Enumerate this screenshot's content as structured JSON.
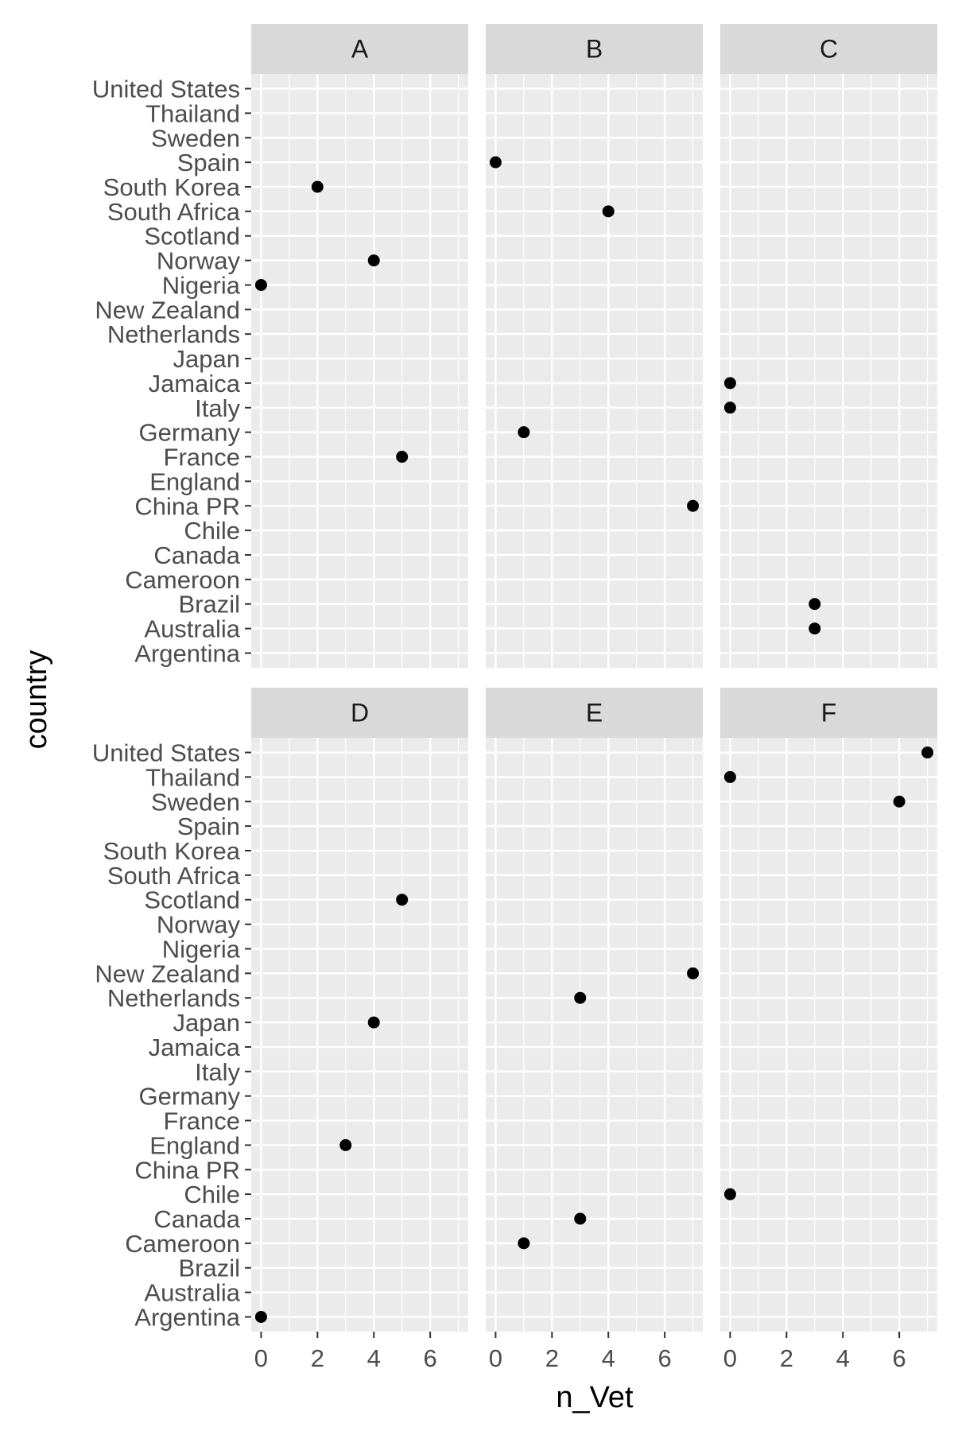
{
  "chart_data": {
    "type": "scatter",
    "xlabel": "n_Vet",
    "ylabel": "country",
    "xlim": [
      -0.35,
      7.35
    ],
    "x_ticks": [
      0,
      2,
      4,
      6
    ],
    "grid": true,
    "countries": [
      "Argentina",
      "Australia",
      "Brazil",
      "Cameroon",
      "Canada",
      "Chile",
      "China PR",
      "England",
      "France",
      "Germany",
      "Italy",
      "Jamaica",
      "Japan",
      "Netherlands",
      "New Zealand",
      "Nigeria",
      "Norway",
      "Scotland",
      "South Africa",
      "South Korea",
      "Spain",
      "Sweden",
      "Thailand",
      "United States"
    ],
    "panels": [
      {
        "name": "A",
        "points": [
          {
            "country": "South Korea",
            "x": 2
          },
          {
            "country": "Norway",
            "x": 4
          },
          {
            "country": "Nigeria",
            "x": 0
          },
          {
            "country": "France",
            "x": 5
          }
        ]
      },
      {
        "name": "B",
        "points": [
          {
            "country": "Spain",
            "x": 0
          },
          {
            "country": "South Africa",
            "x": 4
          },
          {
            "country": "Germany",
            "x": 1
          },
          {
            "country": "China PR",
            "x": 7
          }
        ]
      },
      {
        "name": "C",
        "points": [
          {
            "country": "Jamaica",
            "x": 0
          },
          {
            "country": "Italy",
            "x": 0
          },
          {
            "country": "Brazil",
            "x": 3
          },
          {
            "country": "Australia",
            "x": 3
          }
        ]
      },
      {
        "name": "D",
        "points": [
          {
            "country": "Scotland",
            "x": 5
          },
          {
            "country": "Japan",
            "x": 4
          },
          {
            "country": "England",
            "x": 3
          },
          {
            "country": "Argentina",
            "x": 0
          }
        ]
      },
      {
        "name": "E",
        "points": [
          {
            "country": "New Zealand",
            "x": 7
          },
          {
            "country": "Netherlands",
            "x": 3
          },
          {
            "country": "Canada",
            "x": 3
          },
          {
            "country": "Cameroon",
            "x": 1
          }
        ]
      },
      {
        "name": "F",
        "points": [
          {
            "country": "United States",
            "x": 7
          },
          {
            "country": "Thailand",
            "x": 0
          },
          {
            "country": "Sweden",
            "x": 6
          },
          {
            "country": "Chile",
            "x": 0
          }
        ]
      }
    ]
  }
}
